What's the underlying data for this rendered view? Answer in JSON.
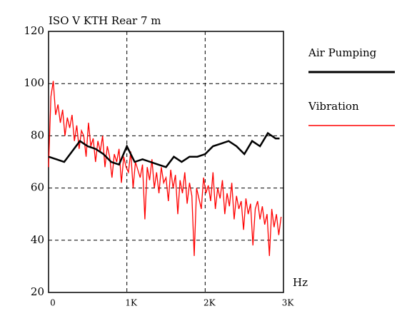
{
  "chart_data": {
    "type": "line",
    "title": "ISO V KTH Rear 7 m",
    "x_label": "Hz",
    "xlim": [
      0,
      3000
    ],
    "xticks": [
      0,
      {
        "value": 1000,
        "label": "1K"
      },
      {
        "value": 2000,
        "label": "2K"
      },
      {
        "value": 3000,
        "label": "3K"
      }
    ],
    "ylim": [
      20,
      120
    ],
    "yticks": [
      20,
      40,
      60,
      80,
      100,
      120
    ],
    "grid": true,
    "legend": "right",
    "series": [
      {
        "name": "Air Pumping",
        "color": "#000000",
        "x": [
          0,
          100,
          200,
          300,
          400,
          500,
          600,
          700,
          800,
          900,
          1000,
          1100,
          1200,
          1300,
          1400,
          1500,
          1600,
          1700,
          1800,
          1900,
          2000,
          2100,
          2200,
          2300,
          2400,
          2500,
          2600,
          2700,
          2800,
          2900,
          2950
        ],
        "values": [
          72,
          71,
          70,
          74,
          78,
          76,
          75,
          73,
          70,
          69,
          76,
          70,
          71,
          70,
          69,
          68,
          72,
          70,
          72,
          72,
          73,
          76,
          77,
          78,
          76,
          73,
          78,
          76,
          81,
          79,
          79
        ]
      },
      {
        "name": "Vibration",
        "color": "#ff0000",
        "x": [
          0,
          30,
          60,
          90,
          120,
          150,
          180,
          210,
          240,
          270,
          300,
          330,
          360,
          390,
          420,
          450,
          480,
          510,
          540,
          570,
          600,
          630,
          660,
          690,
          720,
          750,
          780,
          810,
          840,
          870,
          900,
          930,
          960,
          990,
          1020,
          1050,
          1080,
          1110,
          1140,
          1170,
          1200,
          1230,
          1260,
          1290,
          1320,
          1350,
          1380,
          1410,
          1440,
          1470,
          1500,
          1530,
          1560,
          1590,
          1620,
          1650,
          1680,
          1710,
          1740,
          1770,
          1800,
          1830,
          1860,
          1890,
          1920,
          1950,
          1980,
          2010,
          2040,
          2070,
          2100,
          2130,
          2160,
          2190,
          2220,
          2250,
          2280,
          2310,
          2340,
          2370,
          2400,
          2430,
          2460,
          2490,
          2520,
          2550,
          2580,
          2610,
          2640,
          2670,
          2700,
          2730,
          2760,
          2790,
          2820,
          2850,
          2880,
          2910,
          2940,
          2970
        ],
        "values": [
          68,
          95,
          101,
          88,
          92,
          85,
          90,
          80,
          87,
          83,
          88,
          78,
          84,
          75,
          82,
          80,
          72,
          85,
          76,
          79,
          70,
          78,
          74,
          80,
          68,
          76,
          72,
          64,
          73,
          70,
          75,
          62,
          72,
          68,
          66,
          74,
          60,
          70,
          67,
          64,
          69,
          48,
          68,
          63,
          71,
          60,
          66,
          58,
          68,
          62,
          64,
          55,
          67,
          60,
          65,
          50,
          63,
          58,
          66,
          54,
          62,
          57,
          34,
          60,
          56,
          52,
          64,
          58,
          61,
          55,
          66,
          52,
          60,
          56,
          63,
          50,
          58,
          53,
          62,
          48,
          57,
          52,
          55,
          44,
          56,
          50,
          54,
          38,
          52,
          55,
          48,
          53,
          46,
          50,
          34,
          52,
          45,
          50,
          42,
          49
        ]
      }
    ]
  }
}
